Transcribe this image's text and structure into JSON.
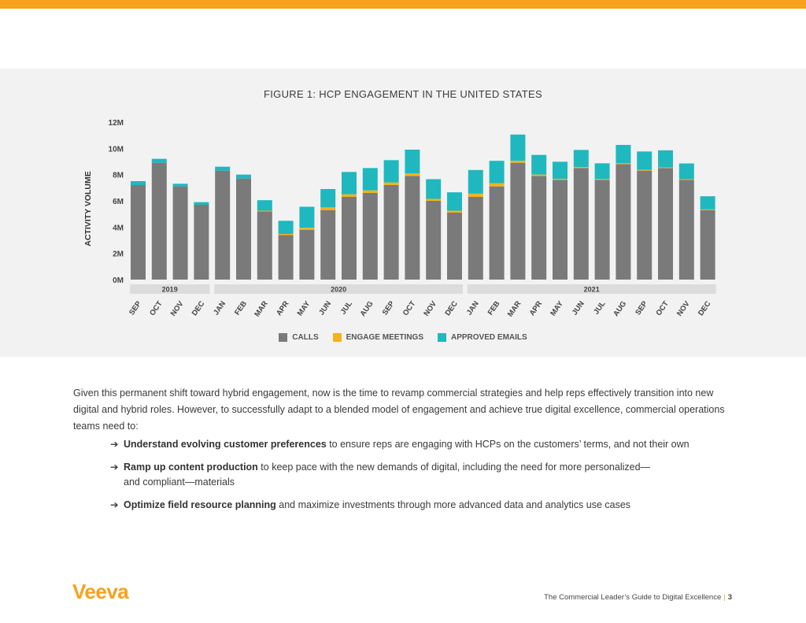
{
  "chart_data": {
    "type": "bar",
    "stacked": true,
    "title": "FIGURE 1: HCP ENGAGEMENT IN THE UNITED STATES",
    "ylabel": "ACTIVITY VOLUME",
    "xlabel": "",
    "ylim": [
      0,
      12
    ],
    "yticks": [
      0,
      2,
      4,
      6,
      8,
      10,
      12
    ],
    "ytick_labels": [
      "0M",
      "2M",
      "4M",
      "6M",
      "8M",
      "10M",
      "12M"
    ],
    "categories": [
      "SEP",
      "OCT",
      "NOV",
      "DEC",
      "JAN",
      "FEB",
      "MAR",
      "APR",
      "MAY",
      "JUN",
      "JUL",
      "AUG",
      "SEP",
      "OCT",
      "NOV",
      "DEC",
      "JAN",
      "FEB",
      "MAR",
      "APR",
      "MAY",
      "JUN",
      "JUL",
      "AUG",
      "SEP",
      "OCT",
      "NOV",
      "DEC"
    ],
    "year_groups": [
      {
        "label": "2019",
        "start": 0,
        "end": 3
      },
      {
        "label": "2020",
        "start": 4,
        "end": 15
      },
      {
        "label": "2021",
        "start": 16,
        "end": 27
      }
    ],
    "series": [
      {
        "name": "CALLS",
        "color": "#7a7a7a",
        "values": [
          7.2,
          8.9,
          7.1,
          5.7,
          8.3,
          7.7,
          5.2,
          3.4,
          3.8,
          5.3,
          6.3,
          6.6,
          7.2,
          7.9,
          6.0,
          5.1,
          6.3,
          7.1,
          8.9,
          7.9,
          7.6,
          8.5,
          7.6,
          8.8,
          8.3,
          8.5,
          7.6,
          5.3
        ]
      },
      {
        "name": "ENGAGE MEETINGS",
        "color": "#f5b21b",
        "values": [
          0,
          0,
          0,
          0,
          0,
          0,
          0.05,
          0.08,
          0.15,
          0.2,
          0.2,
          0.2,
          0.2,
          0.2,
          0.15,
          0.15,
          0.25,
          0.25,
          0.15,
          0.1,
          0.08,
          0.08,
          0.06,
          0.06,
          0.06,
          0.05,
          0.05,
          0.05
        ]
      },
      {
        "name": "APPROVED EMAILS",
        "color": "#1fb8bf",
        "values": [
          0.3,
          0.3,
          0.2,
          0.2,
          0.3,
          0.3,
          0.8,
          1.0,
          1.6,
          1.4,
          1.7,
          1.7,
          1.7,
          1.8,
          1.5,
          1.4,
          1.8,
          1.7,
          2.0,
          1.5,
          1.3,
          1.3,
          1.2,
          1.4,
          1.4,
          1.3,
          1.2,
          1.0
        ]
      }
    ]
  },
  "body": {
    "paragraph": "Given this permanent shift toward hybrid engagement, now is the time to revamp commercial strategies and help reps effectively transition into new digital and hybrid roles. However, to successfully adapt to a blended model of engagement and achieve true digital excellence, commercial operations teams need to:",
    "bullets": [
      {
        "bold": "Understand evolving customer preferences",
        "rest": " to ensure reps are engaging with HCPs on the customers’ terms, and not their own"
      },
      {
        "bold": "Ramp up content production",
        "rest": " to keep pace with the new demands of digital, including the need for more personalized— and compliant—materials"
      },
      {
        "bold": "Optimize field resource planning",
        "rest": " and maximize investments through more advanced data and analytics use cases"
      }
    ]
  },
  "footer": {
    "logo": "Veeva",
    "doc_title": "The Commercial Leader’s Guide to Digital Excellence",
    "separator": "|",
    "page": "3"
  },
  "colors": {
    "accent": "#f6a21d",
    "panel": "#f2f2f2"
  }
}
